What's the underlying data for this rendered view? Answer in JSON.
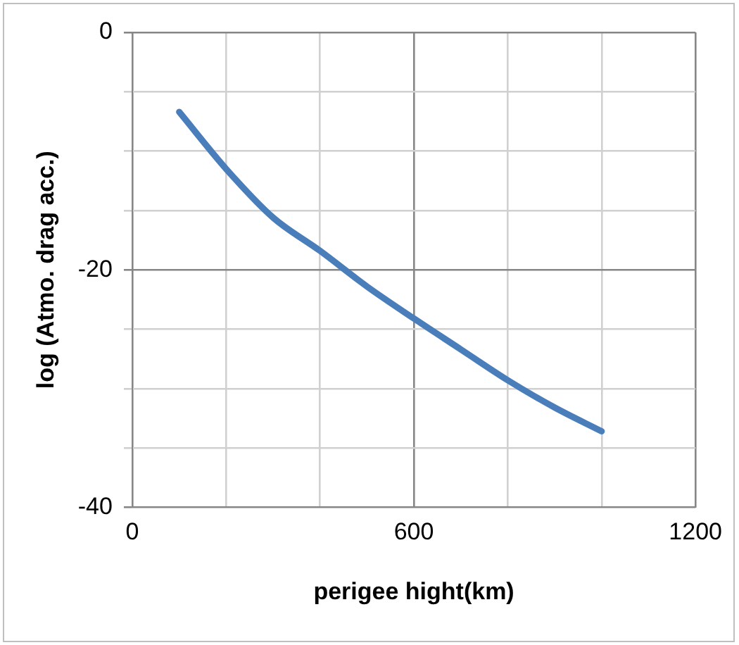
{
  "chart_data": {
    "type": "line",
    "xlabel": "perigee hight(km)",
    "ylabel": "log (Atmo. drag acc.)",
    "x": [
      100,
      200,
      300,
      400,
      500,
      600,
      700,
      800,
      900,
      1000
    ],
    "series": [
      {
        "color": "#4a7ebb",
        "values": [
          -6.7,
          -11.5,
          -15.6,
          -18.4,
          -21.4,
          -24.1,
          -26.7,
          -29.3,
          -31.6,
          -33.6
        ]
      }
    ],
    "xlim": [
      0,
      1200
    ],
    "xticks": [
      0,
      {
        "value": 200,
        "label": null
      },
      {
        "value": 400,
        "label": null
      },
      600,
      {
        "value": 800,
        "label": null
      },
      {
        "value": 1000,
        "label": null
      },
      1200
    ],
    "ylim": [
      -40,
      0
    ],
    "yticks": [
      -40,
      {
        "value": -35,
        "label": null
      },
      {
        "value": -30,
        "label": null
      },
      {
        "value": -25,
        "label": null
      },
      -20,
      {
        "value": -15,
        "label": null
      },
      {
        "value": -10,
        "label": null
      },
      {
        "value": -5,
        "label": null
      },
      0
    ],
    "grid": true,
    "legend": false,
    "marker": "none",
    "line_style": "solid"
  }
}
